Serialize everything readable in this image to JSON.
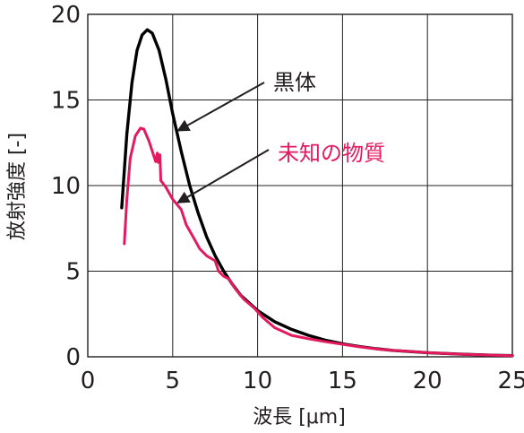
{
  "chart_data": {
    "type": "line",
    "xlabel": "波長 [μm]",
    "ylabel": "放射強度 [-]",
    "xlim": [
      0,
      25
    ],
    "ylim": [
      0,
      20
    ],
    "xticks": [
      "0",
      "5",
      "10",
      "15",
      "20",
      "25"
    ],
    "yticks": [
      "0",
      "5",
      "10",
      "15",
      "20"
    ],
    "grid": true,
    "series": [
      {
        "name": "黒体",
        "color": "#000000",
        "points": [
          [
            2.0,
            8.7
          ],
          [
            2.3,
            13.0
          ],
          [
            2.6,
            16.0
          ],
          [
            2.9,
            17.9
          ],
          [
            3.2,
            18.8
          ],
          [
            3.5,
            19.1
          ],
          [
            3.8,
            18.9
          ],
          [
            4.2,
            17.9
          ],
          [
            4.6,
            16.2
          ],
          [
            5.0,
            14.2
          ],
          [
            5.5,
            12.0
          ],
          [
            6.0,
            10.0
          ],
          [
            6.5,
            8.4
          ],
          [
            7.0,
            7.0
          ],
          [
            7.5,
            5.9
          ],
          [
            8.0,
            5.0
          ],
          [
            8.5,
            4.25
          ],
          [
            9.0,
            3.6
          ],
          [
            10.0,
            2.7
          ],
          [
            11.0,
            2.05
          ],
          [
            12.0,
            1.6
          ],
          [
            13.0,
            1.25
          ],
          [
            14.0,
            0.97
          ],
          [
            15.0,
            0.76
          ],
          [
            16.0,
            0.6
          ],
          [
            17.0,
            0.47
          ],
          [
            18.0,
            0.37
          ],
          [
            20.0,
            0.24
          ],
          [
            22.0,
            0.15
          ],
          [
            24.0,
            0.09
          ],
          [
            25.0,
            0.07
          ]
        ]
      },
      {
        "name": "未知の物質",
        "color": "#e5195d",
        "points": [
          [
            2.15,
            6.6
          ],
          [
            2.3,
            9.2
          ],
          [
            2.5,
            11.6
          ],
          [
            2.8,
            12.9
          ],
          [
            3.1,
            13.35
          ],
          [
            3.3,
            13.3
          ],
          [
            3.6,
            12.6
          ],
          [
            4.0,
            11.4
          ],
          [
            4.1,
            11.9
          ],
          [
            4.15,
            11.35
          ],
          [
            4.25,
            11.8
          ],
          [
            4.3,
            10.3
          ],
          [
            4.6,
            9.9
          ],
          [
            5.0,
            9.2
          ],
          [
            5.5,
            8.6
          ],
          [
            5.8,
            7.7
          ],
          [
            6.2,
            7.0
          ],
          [
            6.6,
            6.3
          ],
          [
            7.0,
            5.9
          ],
          [
            7.5,
            5.6
          ],
          [
            7.7,
            5.0
          ],
          [
            8.0,
            4.7
          ],
          [
            8.3,
            4.55
          ],
          [
            8.7,
            3.95
          ],
          [
            9.2,
            3.35
          ],
          [
            9.8,
            2.85
          ],
          [
            10.3,
            2.3
          ],
          [
            11.0,
            1.7
          ],
          [
            12.0,
            1.25
          ],
          [
            13.0,
            1.05
          ],
          [
            14.0,
            0.88
          ],
          [
            15.0,
            0.73
          ],
          [
            16.0,
            0.58
          ],
          [
            17.0,
            0.46
          ],
          [
            18.0,
            0.37
          ],
          [
            20.0,
            0.24
          ],
          [
            22.0,
            0.15
          ],
          [
            24.0,
            0.09
          ],
          [
            25.0,
            0.07
          ]
        ]
      }
    ],
    "annotations": [
      {
        "label": "黒体",
        "series": 0,
        "target": [
          5.3,
          13.2
        ],
        "color": "#231f20"
      },
      {
        "label": "未知の物質",
        "series": 1,
        "target": [
          5.3,
          9.0
        ],
        "color": "#e5195d"
      }
    ]
  }
}
